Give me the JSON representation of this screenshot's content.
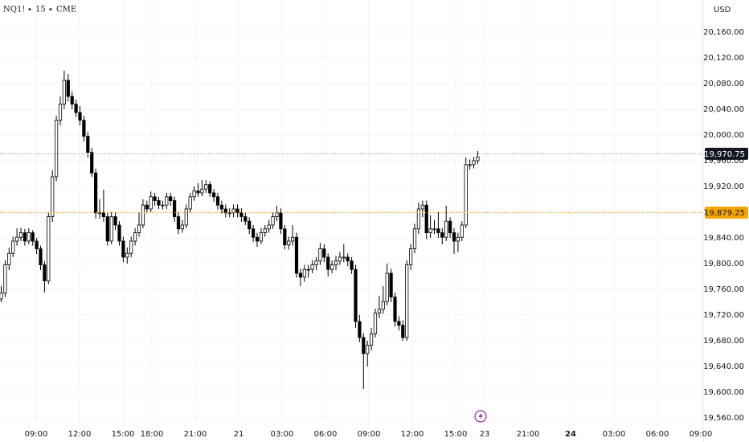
{
  "chart_data": {
    "type": "candlestick",
    "symbol": "NQ1!",
    "interval": "15",
    "exchange": "CME",
    "currency": "USD",
    "ylim": [
      19545,
      20210
    ],
    "yticks": [
      {
        "value": 19560,
        "label": "19,560.00"
      },
      {
        "value": 19600,
        "label": "19,600.00"
      },
      {
        "value": 19640,
        "label": "19,640.00"
      },
      {
        "value": 19680,
        "label": "19,680.00"
      },
      {
        "value": 19720,
        "label": "19,720.00"
      },
      {
        "value": 19760,
        "label": "19,760.00"
      },
      {
        "value": 19800,
        "label": "19,800.00"
      },
      {
        "value": 19840,
        "label": "19,840.00"
      },
      {
        "value": 19880,
        "label": "19,880.00"
      },
      {
        "value": 19920,
        "label": "19,920.00"
      },
      {
        "value": 19960,
        "label": "19,960.00"
      },
      {
        "value": 20000,
        "label": "20,000.00"
      },
      {
        "value": 20040,
        "label": "20,040.00"
      },
      {
        "value": 20080,
        "label": "20,080.00"
      },
      {
        "value": 20120,
        "label": "20,120.00"
      },
      {
        "value": 20160,
        "label": "20,160.00"
      }
    ],
    "xticks": [
      "09:00",
      "12:00",
      "15:00",
      "18:00",
      "21:00",
      "21",
      "03:00",
      "06:00",
      "09:00",
      "12:00",
      "15:00",
      "23",
      "21:00",
      "24",
      "03:00",
      "06:00",
      "09:00"
    ],
    "grid": true,
    "up_color": "#ffffff",
    "down_color": "#000000",
    "wick_color": "#000000",
    "last_price": {
      "value": 19970.75,
      "label": "19,970.75",
      "color": "#131722"
    },
    "ref_price": {
      "value": 19879.25,
      "label": "19,879.25",
      "color": "#f7a600"
    },
    "ohlc": [
      [
        19745,
        19765,
        19740,
        19754
      ],
      [
        19754,
        19805,
        19748,
        19798
      ],
      [
        19798,
        19825,
        19790,
        19816
      ],
      [
        19816,
        19842,
        19810,
        19835
      ],
      [
        19835,
        19855,
        19828,
        19841
      ],
      [
        19841,
        19856,
        19835,
        19848
      ],
      [
        19848,
        19854,
        19828,
        19835
      ],
      [
        19835,
        19855,
        19830,
        19848
      ],
      [
        19848,
        19852,
        19828,
        19835
      ],
      [
        19835,
        19840,
        19815,
        19823
      ],
      [
        19823,
        19828,
        19790,
        19798
      ],
      [
        19798,
        19804,
        19755,
        19773
      ],
      [
        19773,
        19880,
        19768,
        19873
      ],
      [
        19873,
        19945,
        19865,
        19935
      ],
      [
        19935,
        20030,
        19928,
        20023
      ],
      [
        20023,
        20060,
        20015,
        20048
      ],
      [
        20048,
        20100,
        20040,
        20085
      ],
      [
        20085,
        20095,
        20052,
        20060
      ],
      [
        20060,
        20068,
        20040,
        20048
      ],
      [
        20048,
        20055,
        20028,
        20035
      ],
      [
        20035,
        20045,
        20015,
        20023
      ],
      [
        20023,
        20030,
        19990,
        19998
      ],
      [
        19998,
        20005,
        19965,
        19973
      ],
      [
        19973,
        19980,
        19935,
        19941
      ],
      [
        19941,
        19948,
        19870,
        19879
      ],
      [
        19879,
        19900,
        19870,
        19879
      ],
      [
        19879,
        19915,
        19865,
        19873
      ],
      [
        19873,
        19880,
        19828,
        19835
      ],
      [
        19835,
        19880,
        19830,
        19873
      ],
      [
        19873,
        19880,
        19852,
        19860
      ],
      [
        19860,
        19866,
        19828,
        19835
      ],
      [
        19835,
        19842,
        19802,
        19810
      ],
      [
        19810,
        19825,
        19800,
        19816
      ],
      [
        19816,
        19842,
        19810,
        19835
      ],
      [
        19835,
        19855,
        19828,
        19848
      ],
      [
        19848,
        19880,
        19842,
        19860
      ],
      [
        19860,
        19900,
        19855,
        19891
      ],
      [
        19891,
        19898,
        19878,
        19885
      ],
      [
        19885,
        19912,
        19880,
        19904
      ],
      [
        19904,
        19910,
        19890,
        19898
      ],
      [
        19898,
        19904,
        19885,
        19891
      ],
      [
        19891,
        19898,
        19884,
        19891
      ],
      [
        19891,
        19910,
        19885,
        19904
      ],
      [
        19904,
        19910,
        19890,
        19898
      ],
      [
        19898,
        19904,
        19865,
        19873
      ],
      [
        19873,
        19880,
        19846,
        19854
      ],
      [
        19854,
        19868,
        19848,
        19860
      ],
      [
        19860,
        19892,
        19855,
        19885
      ],
      [
        19885,
        19910,
        19880,
        19904
      ],
      [
        19904,
        19920,
        19898,
        19913
      ],
      [
        19913,
        19925,
        19904,
        19910
      ],
      [
        19910,
        19930,
        19905,
        19916
      ],
      [
        19916,
        19930,
        19910,
        19923
      ],
      [
        19923,
        19928,
        19904,
        19910
      ],
      [
        19910,
        19916,
        19896,
        19904
      ],
      [
        19904,
        19910,
        19884,
        19891
      ],
      [
        19891,
        19898,
        19878,
        19885
      ],
      [
        19885,
        19892,
        19872,
        19879
      ],
      [
        19879,
        19886,
        19872,
        19879
      ],
      [
        19879,
        19892,
        19872,
        19885
      ],
      [
        19885,
        19892,
        19872,
        19879
      ],
      [
        19879,
        19886,
        19865,
        19873
      ],
      [
        19873,
        19880,
        19860,
        19866
      ],
      [
        19866,
        19872,
        19846,
        19854
      ],
      [
        19854,
        19860,
        19834,
        19841
      ],
      [
        19841,
        19848,
        19826,
        19835
      ],
      [
        19835,
        19855,
        19830,
        19848
      ],
      [
        19848,
        19860,
        19842,
        19854
      ],
      [
        19854,
        19868,
        19848,
        19860
      ],
      [
        19860,
        19880,
        19854,
        19873
      ],
      [
        19873,
        19890,
        19866,
        19879
      ],
      [
        19879,
        19886,
        19846,
        19854
      ],
      [
        19854,
        19860,
        19822,
        19829
      ],
      [
        19829,
        19842,
        19822,
        19835
      ],
      [
        19835,
        19860,
        19828,
        19841
      ],
      [
        19841,
        19848,
        19778,
        19785
      ],
      [
        19785,
        19792,
        19765,
        19779
      ],
      [
        19779,
        19798,
        19772,
        19791
      ],
      [
        19791,
        19798,
        19778,
        19791
      ],
      [
        19791,
        19805,
        19785,
        19798
      ],
      [
        19798,
        19810,
        19790,
        19804
      ],
      [
        19804,
        19832,
        19798,
        19823
      ],
      [
        19823,
        19830,
        19802,
        19810
      ],
      [
        19810,
        19816,
        19780,
        19791
      ],
      [
        19791,
        19805,
        19785,
        19798
      ],
      [
        19798,
        19812,
        19790,
        19804
      ],
      [
        19804,
        19818,
        19798,
        19810
      ],
      [
        19810,
        19830,
        19802,
        19810
      ],
      [
        19810,
        19816,
        19796,
        19804
      ],
      [
        19804,
        19810,
        19784,
        19791
      ],
      [
        19791,
        19798,
        19700,
        19710
      ],
      [
        19710,
        19720,
        19678,
        19685
      ],
      [
        19685,
        19692,
        19605,
        19660
      ],
      [
        19660,
        19680,
        19640,
        19673
      ],
      [
        19673,
        19700,
        19665,
        19691
      ],
      [
        19691,
        19730,
        19685,
        19723
      ],
      [
        19723,
        19750,
        19715,
        19729
      ],
      [
        19729,
        19765,
        19722,
        19741
      ],
      [
        19741,
        19800,
        19735,
        19785
      ],
      [
        19785,
        19792,
        19740,
        19748
      ],
      [
        19748,
        19755,
        19702,
        19710
      ],
      [
        19710,
        19718,
        19696,
        19704
      ],
      [
        19704,
        19712,
        19680,
        19685
      ],
      [
        19685,
        19805,
        19680,
        19798
      ],
      [
        19798,
        19830,
        19790,
        19823
      ],
      [
        19823,
        19862,
        19816,
        19854
      ],
      [
        19854,
        19895,
        19846,
        19885
      ],
      [
        19885,
        19898,
        19872,
        19891
      ],
      [
        19891,
        19898,
        19838,
        19848
      ],
      [
        19848,
        19875,
        19840,
        19854
      ],
      [
        19854,
        19868,
        19846,
        19854
      ],
      [
        19854,
        19880,
        19840,
        19848
      ],
      [
        19848,
        19855,
        19830,
        19841
      ],
      [
        19841,
        19890,
        19835,
        19866
      ],
      [
        19866,
        19872,
        19840,
        19848
      ],
      [
        19848,
        19855,
        19815,
        19835
      ],
      [
        19835,
        19848,
        19818,
        19841
      ],
      [
        19841,
        19866,
        19835,
        19860
      ],
      [
        19860,
        19965,
        19855,
        19954
      ],
      [
        19954,
        19962,
        19946,
        19954
      ],
      [
        19954,
        19966,
        19948,
        19960
      ],
      [
        19960,
        19975,
        19955,
        19966
      ]
    ]
  }
}
